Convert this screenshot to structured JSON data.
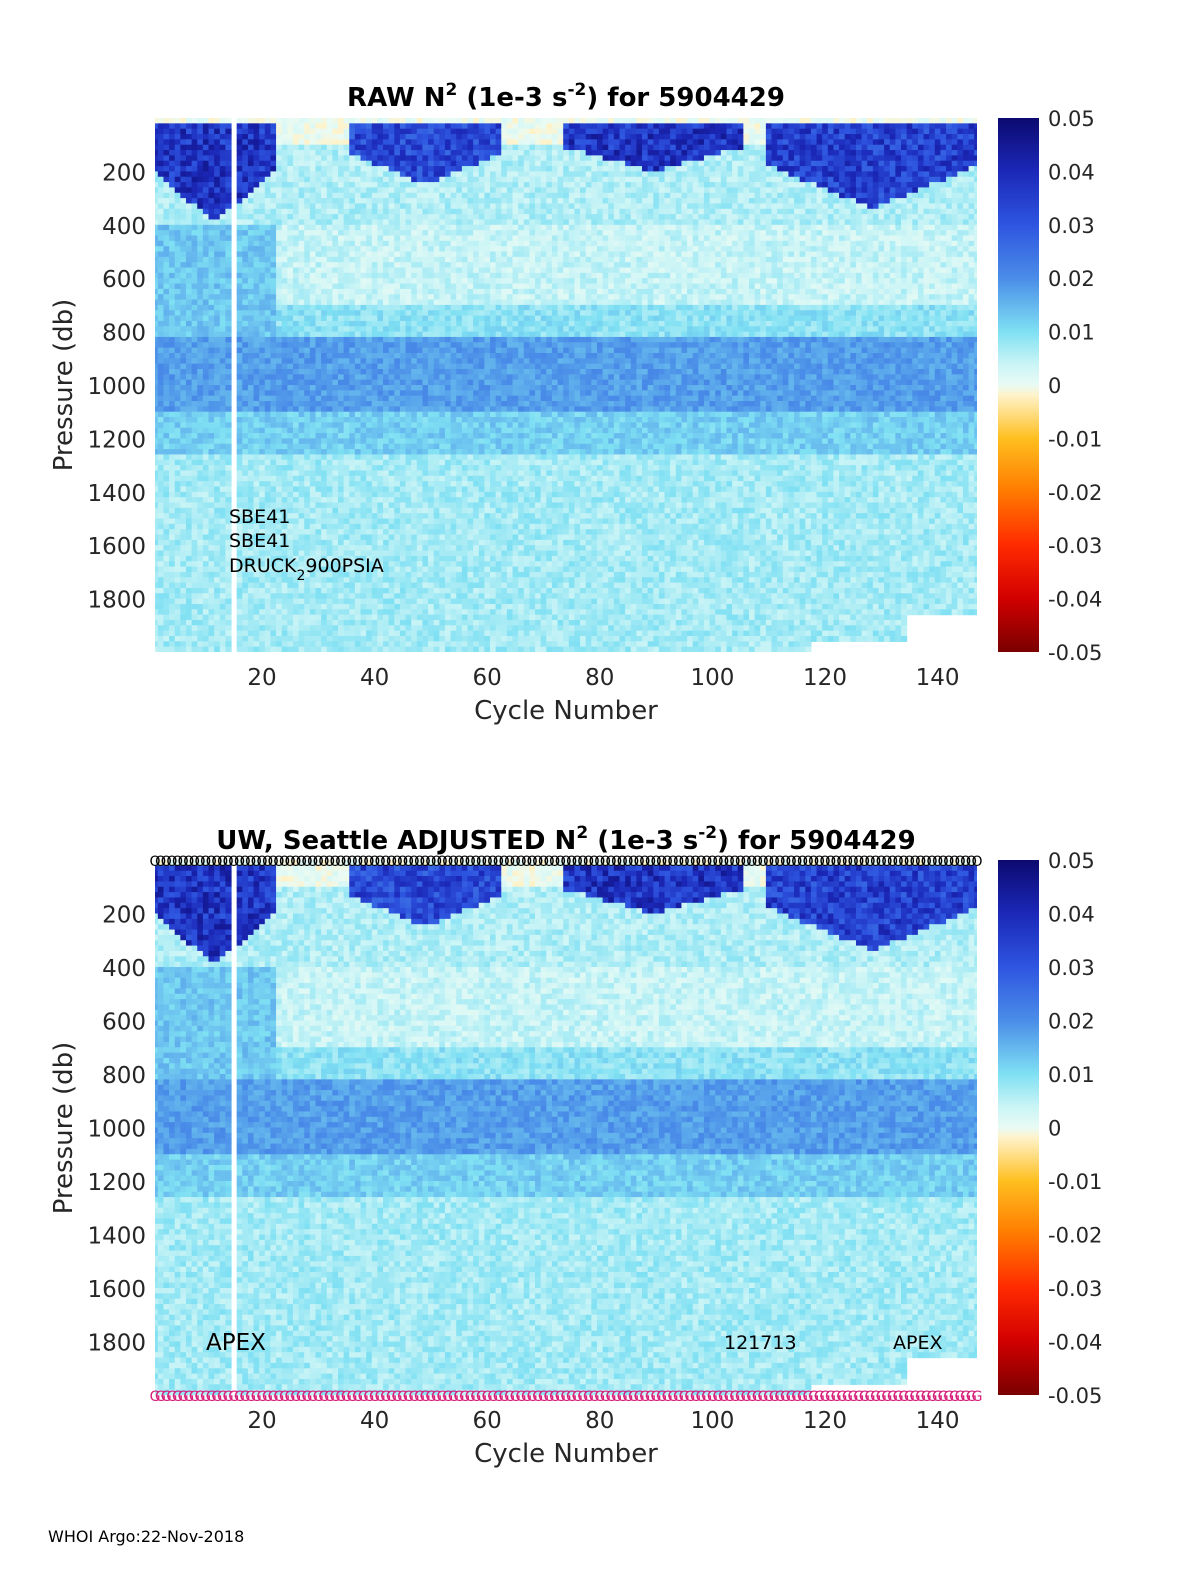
{
  "footer": "WHOI Argo:22-Nov-2018",
  "colorbar": {
    "ticks": [
      "0.05",
      "0.04",
      "0.03",
      "0.02",
      "0.01",
      "0",
      "-0.01",
      "-0.02",
      "-0.03",
      "-0.04",
      "-0.05"
    ],
    "stops": [
      {
        "v": -0.05,
        "c": "#7a0000"
      },
      {
        "v": -0.04,
        "c": "#d10000"
      },
      {
        "v": -0.03,
        "c": "#ff2a00"
      },
      {
        "v": -0.02,
        "c": "#ff7a00"
      },
      {
        "v": -0.01,
        "c": "#ffbf1f"
      },
      {
        "v": -0.002,
        "c": "#fff2c8"
      },
      {
        "v": 0.0,
        "c": "#e9fbf4"
      },
      {
        "v": 0.004,
        "c": "#c9f4f6"
      },
      {
        "v": 0.01,
        "c": "#7fe0f3"
      },
      {
        "v": 0.02,
        "c": "#4a8de8"
      },
      {
        "v": 0.03,
        "c": "#2e55e0"
      },
      {
        "v": 0.04,
        "c": "#1b28b8"
      },
      {
        "v": 0.05,
        "c": "#0c0a70"
      }
    ]
  },
  "chart_data": [
    {
      "type": "heatmap",
      "title": {
        "pre": "RAW N",
        "sup1": "2",
        "mid": " (1e-3 s",
        "sup2": "-2",
        "post": ") for 5904429"
      },
      "xlabel": "Cycle Number",
      "ylabel": "Pressure (db)",
      "xlim": [
        1,
        147
      ],
      "ylim": [
        2000,
        0
      ],
      "xticks": [
        "20",
        "40",
        "60",
        "80",
        "100",
        "120",
        "140"
      ],
      "yticks": [
        "200",
        "400",
        "600",
        "800",
        "1000",
        "1200",
        "1400",
        "1600",
        "1800"
      ],
      "clim": [
        -0.05,
        0.05
      ],
      "annotations": {
        "sensor1": "SBE41",
        "sensor2": "SBE41",
        "sensor3_pre": "DRUCK",
        "sensor3_sub": "2",
        "sensor3_post": "900PSIA"
      },
      "regions": [
        {
          "pressure": [
            0,
            100
          ],
          "value": 0.0
        },
        {
          "pressure": [
            100,
            400
          ],
          "value": 0.006
        },
        {
          "pressure": [
            400,
            700
          ],
          "value": 0.004
        },
        {
          "pressure": [
            700,
            820
          ],
          "value": 0.009
        },
        {
          "pressure": [
            820,
            1100
          ],
          "value": 0.018
        },
        {
          "pressure": [
            1100,
            1250
          ],
          "value": 0.012
        },
        {
          "pressure": [
            1250,
            2000
          ],
          "value": 0.007
        }
      ],
      "strong_layers": [
        {
          "cycles": [
            1,
            22
          ],
          "pressure": [
            20,
            380
          ],
          "value": 0.045
        },
        {
          "cycles": [
            36,
            62
          ],
          "pressure": [
            20,
            240
          ],
          "value": 0.04
        },
        {
          "cycles": [
            74,
            105
          ],
          "pressure": [
            20,
            190
          ],
          "value": 0.045
        },
        {
          "cycles": [
            110,
            147
          ],
          "pressure": [
            20,
            330
          ],
          "value": 0.042
        }
      ],
      "gap_cycle": 15,
      "max_pressure_deep": 1860
    },
    {
      "type": "heatmap",
      "title": {
        "pre": "UW, Seattle  ADJUSTED N",
        "sup1": "2",
        "mid": " (1e-3 s",
        "sup2": "-2",
        "post": ") for 5904429"
      },
      "xlabel": "Cycle Number",
      "ylabel": "Pressure (db)",
      "xlim": [
        1,
        147
      ],
      "ylim": [
        2000,
        0
      ],
      "xticks": [
        "20",
        "40",
        "60",
        "80",
        "100",
        "120",
        "140"
      ],
      "yticks": [
        "200",
        "400",
        "600",
        "800",
        "1000",
        "1200",
        "1400",
        "1600",
        "1800"
      ],
      "clim": [
        -0.05,
        0.05
      ],
      "annotations": {
        "platform_left": "APEX",
        "deploy_date": "121713",
        "platform_right": "APEX"
      },
      "qc_markers": {
        "top_symbol": "O",
        "bottom_symbol": "G",
        "top_color": "#000000",
        "bottom_color": "#d6207a",
        "cycles": [
          1,
          147
        ]
      },
      "regions": [
        {
          "pressure": [
            0,
            100
          ],
          "value": 0.0
        },
        {
          "pressure": [
            100,
            400
          ],
          "value": 0.006
        },
        {
          "pressure": [
            400,
            700
          ],
          "value": 0.004
        },
        {
          "pressure": [
            700,
            820
          ],
          "value": 0.009
        },
        {
          "pressure": [
            820,
            1100
          ],
          "value": 0.018
        },
        {
          "pressure": [
            1100,
            1250
          ],
          "value": 0.012
        },
        {
          "pressure": [
            1250,
            2000
          ],
          "value": 0.007
        }
      ],
      "strong_layers": [
        {
          "cycles": [
            1,
            22
          ],
          "pressure": [
            20,
            380
          ],
          "value": 0.045
        },
        {
          "cycles": [
            36,
            62
          ],
          "pressure": [
            20,
            240
          ],
          "value": 0.04
        },
        {
          "cycles": [
            74,
            105
          ],
          "pressure": [
            20,
            190
          ],
          "value": 0.045
        },
        {
          "cycles": [
            110,
            147
          ],
          "pressure": [
            20,
            330
          ],
          "value": 0.042
        }
      ],
      "gap_cycle": 15,
      "max_pressure_deep": 1860
    }
  ]
}
